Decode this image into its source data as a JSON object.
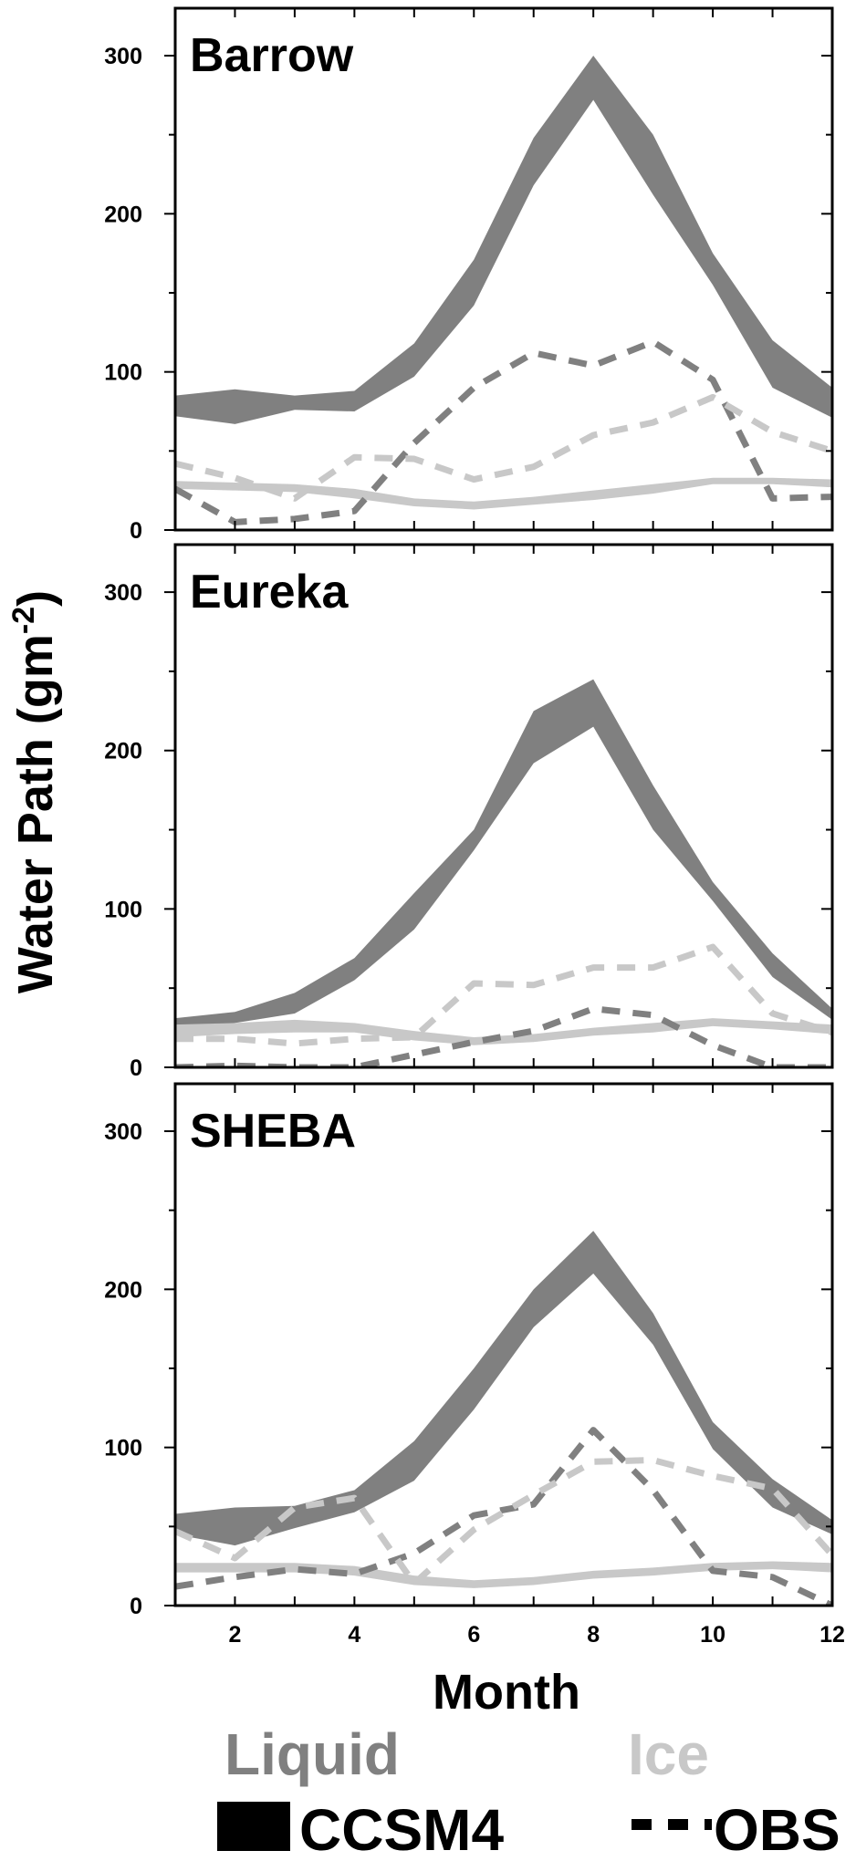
{
  "chart_data": {
    "type": "area",
    "xlabel": "Month",
    "ylabel": "Water Path (gm",
    "ylabel_sup": "-2",
    "ylabel_close": ")",
    "xlim": [
      1,
      12
    ],
    "ylim": [
      0,
      330
    ],
    "x_ticks": [
      2,
      4,
      6,
      8,
      10,
      12
    ],
    "y_ticks": [
      0,
      100,
      200,
      300
    ],
    "colors": {
      "liquid": "#808080",
      "ice": "#c8c8c8",
      "frame": "#000000"
    },
    "x": [
      1,
      2,
      3,
      4,
      5,
      6,
      7,
      8,
      9,
      10,
      11,
      12
    ],
    "panels": [
      {
        "title": "Barrow",
        "series": [
          {
            "phase": "liquid",
            "source": "CCSM4",
            "lower": [
              72,
              67,
              76,
              75,
              97,
              142,
              218,
              272,
              212,
              155,
              90,
              71
            ],
            "upper": [
              85,
              89,
              85,
              88,
              118,
              171,
              248,
              300,
              250,
              175,
              120,
              90
            ]
          },
          {
            "phase": "ice",
            "source": "CCSM4",
            "lower": [
              26,
              25,
              24,
              20,
              15,
              13,
              16,
              19,
              23,
              29,
              29,
              27
            ],
            "upper": [
              31,
              30,
              29,
              26,
              20,
              18,
              21,
              25,
              29,
              33,
              33,
              32
            ]
          },
          {
            "phase": "liquid",
            "source": "OBS",
            "values": [
              26,
              5,
              7,
              12,
              55,
              90,
              112,
              104,
              119,
              95,
              20,
              21
            ]
          },
          {
            "phase": "ice",
            "source": "OBS",
            "values": [
              42,
              33,
              20,
              46,
              45,
              32,
              40,
              60,
              68,
              84,
              62,
              50
            ]
          }
        ]
      },
      {
        "title": "Eureka",
        "series": [
          {
            "phase": "liquid",
            "source": "CCSM4",
            "lower": [
              24,
              28,
              34,
              55,
              87,
              137,
              192,
              215,
              150,
              105,
              57,
              30
            ],
            "upper": [
              31,
              35,
              47,
              69,
              110,
              150,
              225,
              245,
              178,
              117,
              72,
              37
            ]
          },
          {
            "phase": "ice",
            "source": "CCSM4",
            "lower": [
              19,
              21,
              22,
              22,
              17,
              14,
              16,
              20,
              22,
              26,
              24,
              21
            ],
            "upper": [
              27,
              28,
              30,
              28,
              23,
              19,
              21,
              25,
              28,
              31,
              29,
              27
            ]
          },
          {
            "phase": "liquid",
            "source": "OBS",
            "values": [
              0,
              1,
              0,
              0,
              8,
              16,
              23,
              37,
              33,
              14,
              0,
              0
            ]
          },
          {
            "phase": "ice",
            "source": "OBS",
            "values": [
              18,
              18,
              15,
              18,
              19,
              53,
              52,
              63,
              63,
              76,
              34,
              22
            ]
          }
        ]
      },
      {
        "title": "SHEBA",
        "series": [
          {
            "phase": "liquid",
            "source": "CCSM4",
            "lower": [
              45,
              38,
              49,
              59,
              79,
              124,
              176,
              210,
              165,
              99,
              62,
              45
            ],
            "upper": [
              58,
              62,
              63,
              73,
              104,
              150,
              200,
              237,
              185,
              116,
              80,
              54
            ]
          },
          {
            "phase": "ice",
            "source": "CCSM4",
            "lower": [
              21,
              21,
              21,
              19,
              13,
              11,
              13,
              17,
              19,
              22,
              23,
              21
            ],
            "upper": [
              27,
              27,
              27,
              25,
              19,
              16,
              18,
              22,
              24,
              27,
              28,
              27
            ]
          },
          {
            "phase": "liquid",
            "source": "OBS",
            "values": [
              12,
              18,
              23,
              20,
              33,
              57,
              64,
              111,
              73,
              22,
              18,
              0
            ]
          },
          {
            "phase": "ice",
            "source": "OBS",
            "values": [
              47,
              30,
              62,
              68,
              14,
              48,
              70,
              91,
              92,
              82,
              74,
              32
            ]
          }
        ]
      }
    ],
    "legend": {
      "liquid_label": "Liquid",
      "ice_label": "Ice",
      "ccsm4_label": "CCSM4",
      "obs_label": "OBS"
    }
  }
}
